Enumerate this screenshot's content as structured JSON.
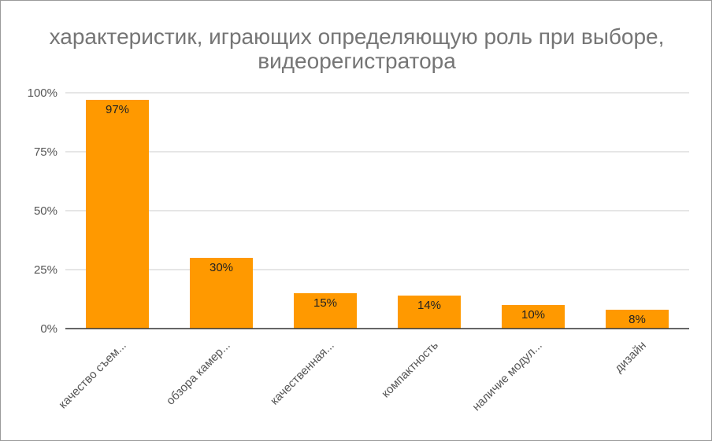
{
  "chart_data": {
    "type": "bar",
    "title": "характеристик, играющих определяющую роль при выборе, видеорегистратора",
    "categories": [
      "качество съем...",
      "обзора камер...",
      "качественная...",
      "компактность",
      "наличие модул...",
      "дизайн"
    ],
    "values": [
      97,
      30,
      15,
      14,
      10,
      8
    ],
    "data_labels": [
      "97%",
      "30%",
      "15%",
      "14%",
      "10%",
      "8%"
    ],
    "y_ticks": [
      0,
      25,
      50,
      75,
      100
    ],
    "y_tick_labels": [
      "0%",
      "25%",
      "50%",
      "75%",
      "100%"
    ],
    "ylim": [
      0,
      100
    ],
    "xlabel": "",
    "ylabel": "",
    "grid": true,
    "legend": "none",
    "bar_color": "#ff9900",
    "gridline_color": "#cccccc",
    "axis_color": "#333333"
  }
}
